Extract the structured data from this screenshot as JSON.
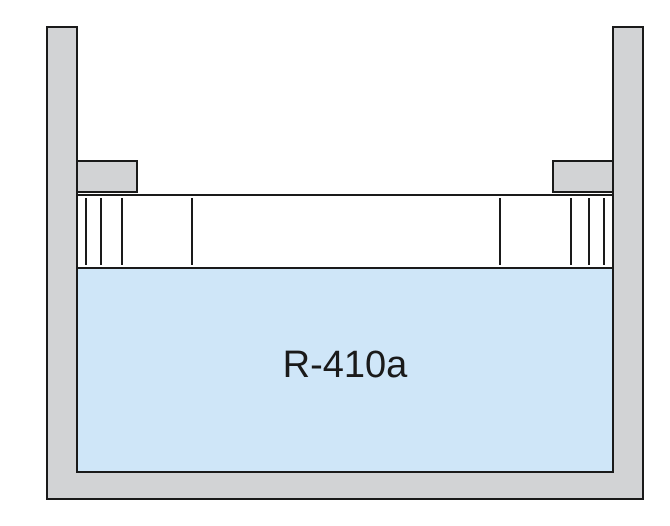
{
  "diagram": {
    "fluid_label": "R-410a"
  },
  "colors": {
    "container_wall": "#d2d3d5",
    "fluid": "#cfe6f8",
    "outline": "#1a1a1a",
    "piston": "#ffffff"
  }
}
